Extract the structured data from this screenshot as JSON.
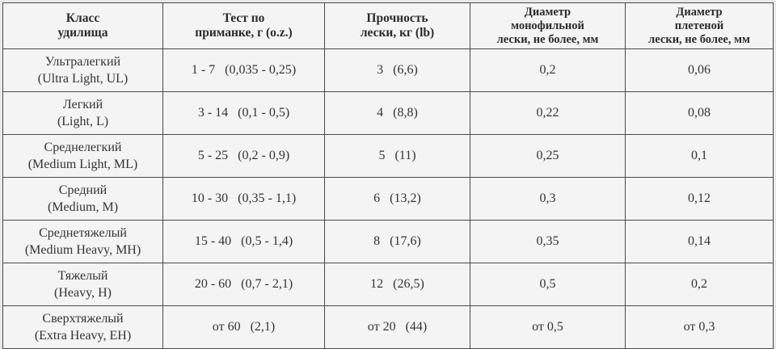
{
  "table": {
    "headers": [
      {
        "line1": "Класс",
        "line2": "удилища"
      },
      {
        "line1": "Тест по",
        "line2": "приманке, г (o.z.)"
      },
      {
        "line1": "Прочность",
        "line2": "лески, кг (lb)"
      },
      {
        "line1": "Диаметр",
        "line2": "монофильной",
        "line3": "лески, не более, мм"
      },
      {
        "line1": "Диаметр",
        "line2": "плетеной",
        "line3": "лески, не более, мм"
      }
    ],
    "rows": [
      {
        "class_ru": "Ультралегкий",
        "class_en": "(Ultra Light, UL)",
        "lure_test": "1 - 7   (0,035 - 0,25)",
        "line_strength": "3   (6,6)",
        "mono_diameter": "0,2",
        "braid_diameter": "0,06"
      },
      {
        "class_ru": "Легкий",
        "class_en": "(Light, L)",
        "lure_test": "3 - 14   (0,1 - 0,5)",
        "line_strength": "4   (8,8)",
        "mono_diameter": "0,22",
        "braid_diameter": "0,08"
      },
      {
        "class_ru": "Среднелегкий",
        "class_en": "(Medium Light, ML)",
        "lure_test": "5 - 25   (0,2 - 0,9)",
        "line_strength": "5   (11)",
        "mono_diameter": "0,25",
        "braid_diameter": "0,1"
      },
      {
        "class_ru": "Средний",
        "class_en": "(Medium, M)",
        "lure_test": "10 - 30   (0,35 - 1,1)",
        "line_strength": "6   (13,2)",
        "mono_diameter": "0,3",
        "braid_diameter": "0,12"
      },
      {
        "class_ru": "Среднетяжелый",
        "class_en": "(Medium Heavy, MH)",
        "lure_test": "15 - 40   (0,5 - 1,4)",
        "line_strength": "8   (17,6)",
        "mono_diameter": "0,35",
        "braid_diameter": "0,14"
      },
      {
        "class_ru": "Тяжелый",
        "class_en": "(Heavy, H)",
        "lure_test": "20 - 60   (0,7 - 2,1)",
        "line_strength": "12   (26,5)",
        "mono_diameter": "0,5",
        "braid_diameter": "0,2"
      },
      {
        "class_ru": "Сверхтяжелый",
        "class_en": "(Extra Heavy, EH)",
        "lure_test": "от 60   (2,1)",
        "line_strength": "от 20   (44)",
        "mono_diameter": "от 0,5",
        "braid_diameter": "от 0,3"
      }
    ]
  }
}
